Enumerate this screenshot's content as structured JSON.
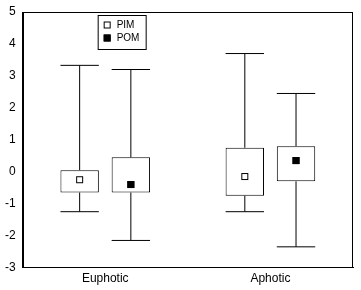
{
  "chart_data": {
    "type": "box",
    "categories": [
      "Euphotic",
      "Aphotic"
    ],
    "series": [
      {
        "name": "PIM",
        "color": "#000000",
        "marker": "square_open",
        "values": [
          -0.25,
          -0.15
        ],
        "box_low": [
          -0.65,
          -0.75
        ],
        "box_high": [
          0.05,
          0.75
        ],
        "whisker_low": [
          -1.25,
          -1.25
        ],
        "whisker_high": [
          3.33,
          3.7
        ]
      },
      {
        "name": "POM",
        "color": "#000000",
        "marker": "square_filled",
        "values": [
          -0.4,
          0.35
        ],
        "box_low": [
          -0.65,
          -0.3
        ],
        "box_high": [
          0.45,
          0.8
        ],
        "whisker_low": [
          -2.15,
          -2.35
        ],
        "whisker_high": [
          3.2,
          2.45
        ]
      }
    ],
    "ylim": [
      -3,
      5
    ],
    "yticks": [
      -3,
      -2,
      -1,
      0,
      1,
      2,
      3,
      4,
      5
    ],
    "grid": false,
    "legend": "upper left"
  }
}
